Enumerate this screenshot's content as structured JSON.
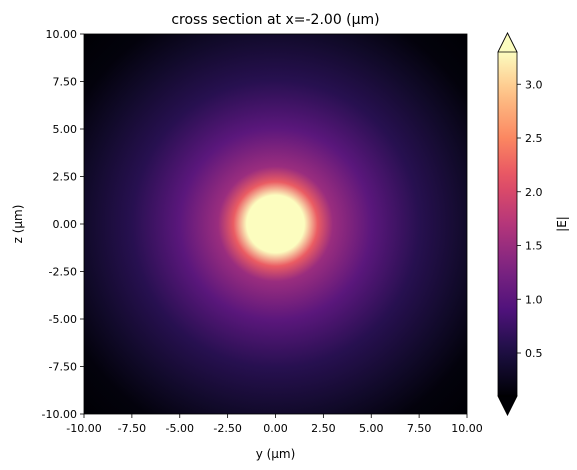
{
  "chart_data": {
    "type": "heatmap",
    "title": "cross section at x=-2.00 (µm)",
    "xlabel": "y (µm)",
    "ylabel": "z (µm)",
    "xlim": [
      -10,
      10
    ],
    "ylim": [
      -10,
      10
    ],
    "x_ticks": [
      "-10.00",
      "-7.50",
      "-5.00",
      "-2.50",
      "0.00",
      "2.50",
      "5.00",
      "7.50",
      "10.00"
    ],
    "x_tick_values": [
      -10,
      -7.5,
      -5,
      -2.5,
      0,
      2.5,
      5,
      7.5,
      10
    ],
    "y_ticks": [
      "10.00",
      "7.50",
      "5.00",
      "2.50",
      "0.00",
      "-2.50",
      "-5.00",
      "-7.50",
      "-10.00"
    ],
    "y_tick_values": [
      10,
      7.5,
      5,
      2.5,
      0,
      -2.5,
      -5,
      -7.5,
      -10
    ],
    "colormap": "magma",
    "colorbar": {
      "label": "|E|",
      "range": [
        0.1,
        3.3
      ],
      "extend": "both",
      "ticks": [
        "3.0",
        "2.5",
        "2.0",
        "1.5",
        "1.0",
        "0.5"
      ],
      "tick_values": [
        3.0,
        2.5,
        2.0,
        1.5,
        1.0,
        0.5
      ]
    },
    "field": {
      "center": [
        0,
        0
      ],
      "peak": 3.3,
      "saturated_radius": 1.5,
      "value_at_r5": 1.0,
      "value_at_edge_center": 0.35,
      "value_at_corner": 0.05
    },
    "grid": false
  }
}
